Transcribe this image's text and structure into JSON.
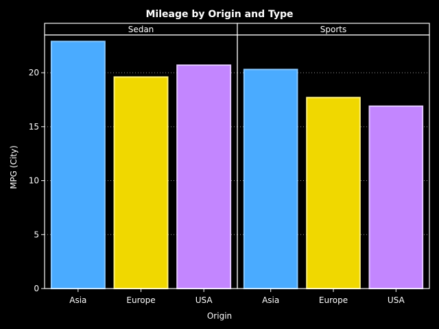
{
  "chart_data": {
    "type": "bar",
    "title": "Mileage by Origin and Type",
    "xlabel": "Origin",
    "ylabel": "MPG (City)",
    "ylim": [
      0,
      23.5
    ],
    "yticks": [
      0,
      5,
      10,
      15,
      20
    ],
    "grid": "horizontal-dotted",
    "categories": [
      "Asia",
      "Europe",
      "USA"
    ],
    "category_colors": {
      "Asia": {
        "fill": "#4aabff",
        "stroke": "#87c8ff"
      },
      "Europe": {
        "fill": "#f0d800",
        "stroke": "#fff27a"
      },
      "USA": {
        "fill": "#c386ff",
        "stroke": "#e3c8ff"
      }
    },
    "panels": [
      {
        "name": "Sedan",
        "values": [
          22.9,
          19.6,
          20.7
        ]
      },
      {
        "name": "Sports",
        "values": [
          20.3,
          17.7,
          16.9
        ]
      }
    ]
  }
}
